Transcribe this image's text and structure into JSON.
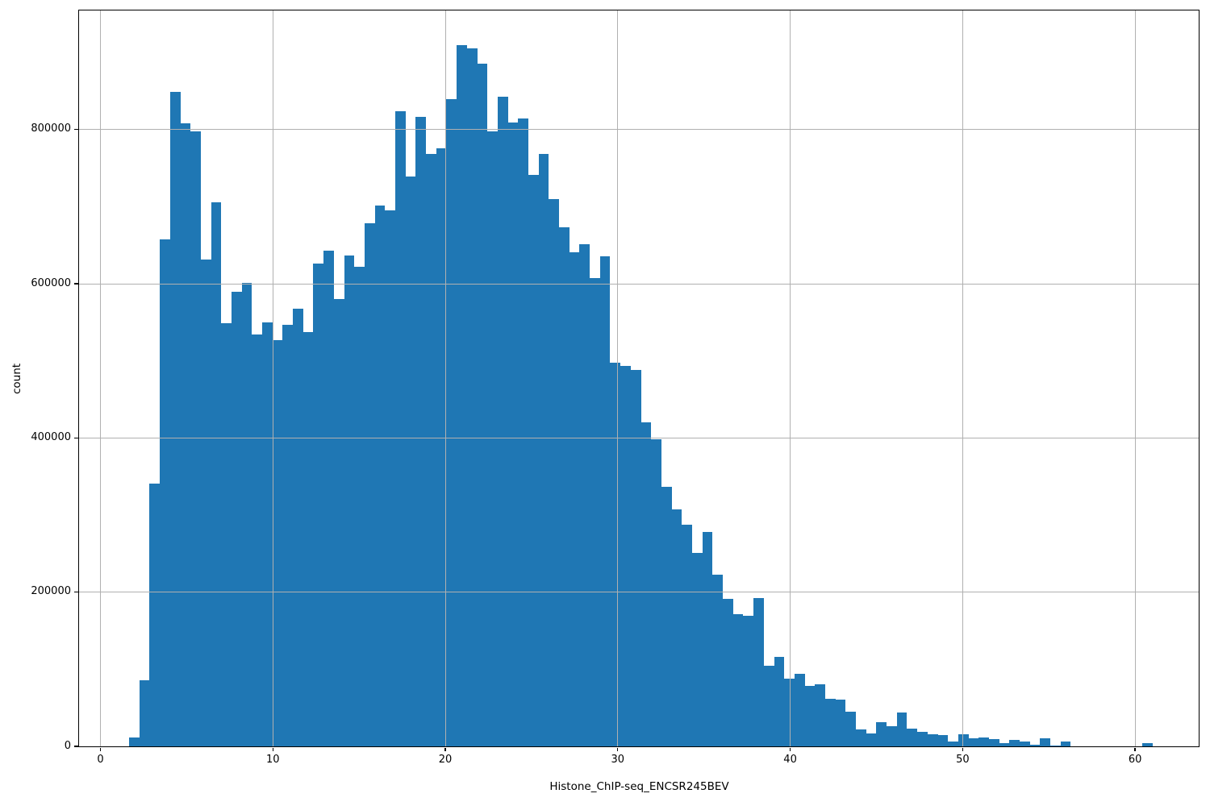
{
  "chart_data": {
    "type": "bar",
    "subtype": "histogram",
    "title": "",
    "xlabel": "Histone_ChIP-seq_ENCSR245BEV",
    "ylabel": "count",
    "legend": null,
    "grid": true,
    "grid_above_bars": true,
    "bar_color": "#1f77b4",
    "grid_color": "#b0b0b0",
    "spine_color": "#000000",
    "text_color": "#000000",
    "xlim": [
      -1.24,
      63.69
    ],
    "ylim": [
      0,
      954500
    ],
    "xticks": [
      0,
      10,
      20,
      30,
      40,
      50,
      60
    ],
    "yticks": [
      0,
      200000,
      400000,
      600000,
      800000
    ],
    "bin_start": 1.664,
    "bin_width": 0.5936,
    "counts": [
      12000,
      86000,
      341000,
      658000,
      849000,
      808000,
      798000,
      631000,
      706000,
      549000,
      590000,
      601000,
      534000,
      550000,
      527000,
      547000,
      568000,
      537000,
      626000,
      643000,
      580000,
      637000,
      622000,
      679000,
      701000,
      695000,
      824000,
      739000,
      817000,
      768000,
      776000,
      839000,
      910000,
      905000,
      886000,
      798000,
      843000,
      809000,
      814000,
      741000,
      768000,
      710000,
      673000,
      641000,
      651000,
      607000,
      636000,
      498000,
      493000,
      488000,
      420000,
      398000,
      337000,
      307000,
      288000,
      251000,
      278000,
      223000,
      191000,
      171000,
      169000,
      192000,
      105000,
      116000,
      88000,
      94000,
      78000,
      81000,
      62000,
      61000,
      45000,
      22000,
      17000,
      31000,
      26000,
      44000,
      23000,
      19000,
      15500,
      15000,
      6000,
      16200,
      10000,
      11000,
      9200,
      4000,
      8600,
      6100,
      2000,
      10300,
      800,
      6800,
      0,
      0,
      0,
      0,
      0,
      0,
      0,
      4700
    ]
  }
}
